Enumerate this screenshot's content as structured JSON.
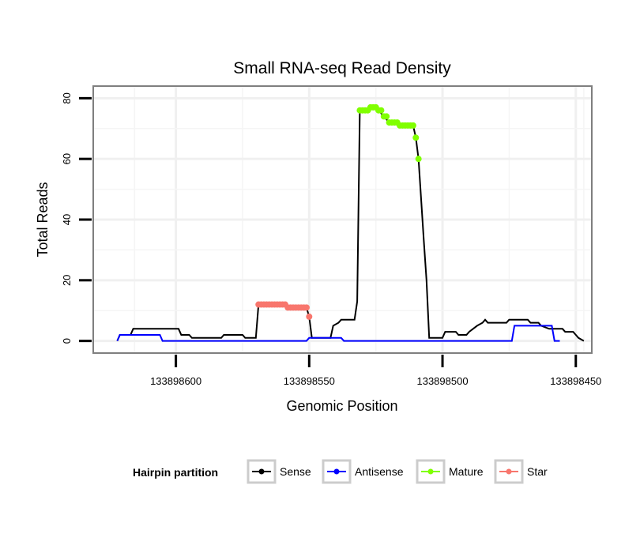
{
  "chart_data": {
    "type": "line",
    "title": "Small RNA-seq Read Density",
    "xlabel": "Genomic Position",
    "ylabel": "Total Reads",
    "xlim": [
      133898631,
      133898444
    ],
    "x_reversed": true,
    "ylim": [
      -4,
      84
    ],
    "xticks": [
      133898600,
      133898550,
      133898500,
      133898450
    ],
    "xtick_labels": [
      "133898600",
      "133898550",
      "133898500",
      "133898450"
    ],
    "yticks": [
      0,
      20,
      40,
      60,
      80
    ],
    "ytick_labels": [
      "0",
      "20",
      "40",
      "60",
      "80"
    ],
    "grid": true,
    "legend": {
      "title": "Hairpin partition",
      "position": "bottom",
      "items": [
        {
          "name": "Sense",
          "color": "#000000"
        },
        {
          "name": "Antisense",
          "color": "#0000ff"
        },
        {
          "name": "Mature",
          "color": "#80ff00"
        },
        {
          "name": "Star",
          "color": "#f8766d"
        }
      ]
    },
    "series": [
      {
        "name": "Sense",
        "color": "#000000",
        "style": "line",
        "points": [
          [
            133898622,
            0
          ],
          [
            133898621,
            2
          ],
          [
            133898617,
            2
          ],
          [
            133898616,
            4
          ],
          [
            133898599,
            4
          ],
          [
            133898598,
            2
          ],
          [
            133898595,
            2
          ],
          [
            133898594,
            1
          ],
          [
            133898583,
            1
          ],
          [
            133898582,
            2
          ],
          [
            133898575,
            2
          ],
          [
            133898574,
            1
          ],
          [
            133898570,
            1
          ],
          [
            133898569,
            12
          ],
          [
            133898551,
            11
          ],
          [
            133898550,
            8
          ],
          [
            133898549,
            1
          ],
          [
            133898542,
            1
          ],
          [
            133898541,
            5
          ],
          [
            133898539,
            6
          ],
          [
            133898538,
            7
          ],
          [
            133898533,
            7
          ],
          [
            133898532,
            13
          ],
          [
            133898531,
            76
          ],
          [
            133898527,
            77
          ],
          [
            133898524,
            76
          ],
          [
            133898522,
            74
          ],
          [
            133898520,
            72
          ],
          [
            133898516,
            71
          ],
          [
            133898511,
            71
          ],
          [
            133898510,
            67
          ],
          [
            133898509,
            60
          ],
          [
            133898507,
            33
          ],
          [
            133898506,
            20
          ],
          [
            133898505,
            1
          ],
          [
            133898500,
            1
          ],
          [
            133898499,
            3
          ],
          [
            133898495,
            3
          ],
          [
            133898494,
            2
          ],
          [
            133898491,
            2
          ],
          [
            133898490,
            3
          ],
          [
            133898487,
            5
          ],
          [
            133898485,
            6
          ],
          [
            133898484,
            7
          ],
          [
            133898483,
            6
          ],
          [
            133898476,
            6
          ],
          [
            133898475,
            7
          ],
          [
            133898468,
            7
          ],
          [
            133898467,
            6
          ],
          [
            133898464,
            6
          ],
          [
            133898463,
            5
          ],
          [
            133898460,
            4
          ],
          [
            133898455,
            4
          ],
          [
            133898454,
            3
          ],
          [
            133898451,
            3
          ],
          [
            133898450,
            2
          ],
          [
            133898449,
            1
          ],
          [
            133898447,
            0
          ]
        ]
      },
      {
        "name": "Antisense",
        "color": "#0000ff",
        "style": "line",
        "points": [
          [
            133898622,
            0
          ],
          [
            133898621,
            2
          ],
          [
            133898606,
            2
          ],
          [
            133898605,
            0
          ],
          [
            133898551,
            0
          ],
          [
            133898550,
            1
          ],
          [
            133898538,
            1
          ],
          [
            133898537,
            0
          ],
          [
            133898474,
            0
          ],
          [
            133898473,
            5
          ],
          [
            133898459,
            5
          ],
          [
            133898458,
            0
          ],
          [
            133898456,
            0
          ]
        ]
      },
      {
        "name": "Mature",
        "color": "#80ff00",
        "style": "points",
        "points": [
          [
            133898531,
            76
          ],
          [
            133898530,
            76
          ],
          [
            133898529,
            76
          ],
          [
            133898528,
            76
          ],
          [
            133898527,
            77
          ],
          [
            133898526,
            77
          ],
          [
            133898525,
            77
          ],
          [
            133898524,
            76
          ],
          [
            133898523,
            76
          ],
          [
            133898522,
            74
          ],
          [
            133898521,
            74
          ],
          [
            133898520,
            72
          ],
          [
            133898519,
            72
          ],
          [
            133898518,
            72
          ],
          [
            133898517,
            72
          ],
          [
            133898516,
            71
          ],
          [
            133898515,
            71
          ],
          [
            133898514,
            71
          ],
          [
            133898513,
            71
          ],
          [
            133898512,
            71
          ],
          [
            133898511,
            71
          ],
          [
            133898510,
            67
          ],
          [
            133898509,
            60
          ]
        ]
      },
      {
        "name": "Star",
        "color": "#f8766d",
        "style": "points",
        "points": [
          [
            133898569,
            12
          ],
          [
            133898568,
            12
          ],
          [
            133898567,
            12
          ],
          [
            133898566,
            12
          ],
          [
            133898565,
            12
          ],
          [
            133898564,
            12
          ],
          [
            133898563,
            12
          ],
          [
            133898562,
            12
          ],
          [
            133898561,
            12
          ],
          [
            133898560,
            12
          ],
          [
            133898559,
            12
          ],
          [
            133898558,
            11
          ],
          [
            133898557,
            11
          ],
          [
            133898556,
            11
          ],
          [
            133898555,
            11
          ],
          [
            133898554,
            11
          ],
          [
            133898553,
            11
          ],
          [
            133898552,
            11
          ],
          [
            133898551,
            11
          ],
          [
            133898550,
            8
          ]
        ]
      }
    ]
  }
}
